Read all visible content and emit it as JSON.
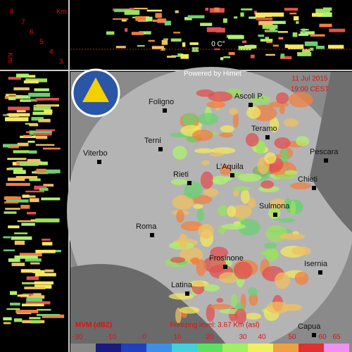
{
  "profile": {
    "km_top": "Km",
    "km_side": "Km",
    "heights": [
      "8",
      "7",
      "6",
      "5",
      "4",
      "3"
    ],
    "freezing_mark": "0 C°"
  },
  "map": {
    "credit": "Powered by Himet",
    "date": "11 Jul 2015",
    "time": "19:00 CEST",
    "cities": [
      "Foligno",
      "Ascoli P.",
      "Terni",
      "Teramo",
      "Viterbo",
      "Pescara",
      "Rieti",
      "L'Aquila",
      "Chieti",
      "Sulmona",
      "Roma",
      "Frosinone",
      "Isernia",
      "Latina",
      "Capua"
    ]
  },
  "legend": {
    "title": "MVM (dBZ)",
    "freezing_level": "Freezing level: 3.67 Km (asl)",
    "labels": [
      "-30",
      "-10",
      "0",
      "10",
      "20",
      "30",
      "40",
      "50",
      "60",
      "65"
    ]
  }
}
